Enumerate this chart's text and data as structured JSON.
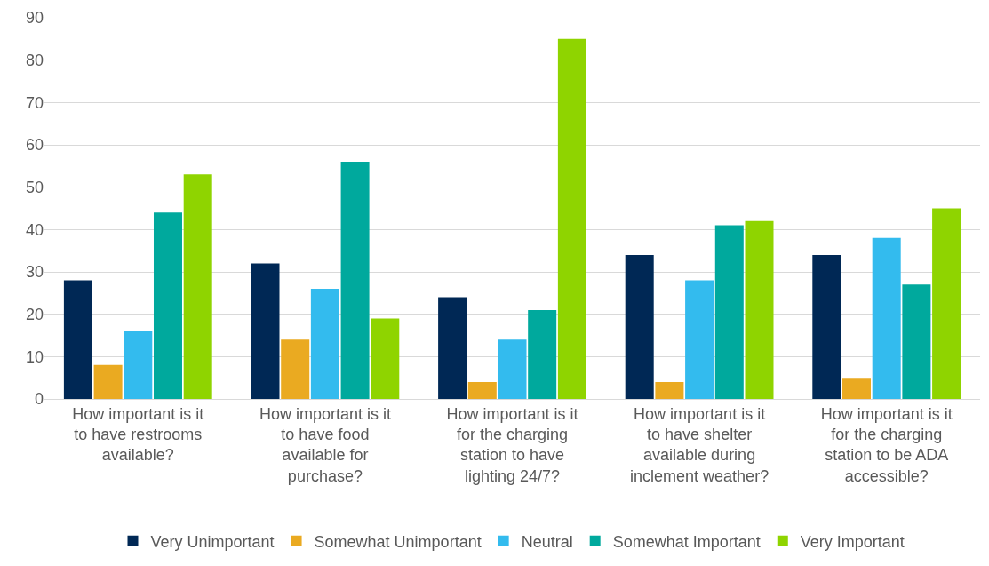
{
  "chart_data": {
    "type": "bar",
    "categories": [
      "How important is it to have restrooms available?",
      "How important is it to have food available for purchase?",
      "How important is it for the charging station to have lighting 24/7?",
      "How important is it to have shelter available during inclement weather?",
      "How important is it for the charging station to be ADA accessible?"
    ],
    "series": [
      {
        "name": "Very Unimportant",
        "color": "#002855",
        "values": [
          28,
          32,
          24,
          34,
          34
        ]
      },
      {
        "name": "Somewhat Unimportant",
        "color": "#eaaa21",
        "values": [
          8,
          14,
          4,
          4,
          5
        ]
      },
      {
        "name": "Neutral",
        "color": "#33bbee",
        "values": [
          16,
          26,
          14,
          28,
          38
        ]
      },
      {
        "name": "Somewhat Important",
        "color": "#00a99d",
        "values": [
          44,
          56,
          21,
          41,
          27
        ]
      },
      {
        "name": "Very Important",
        "color": "#8fd400",
        "values": [
          53,
          19,
          85,
          42,
          45
        ]
      }
    ],
    "ylim": [
      0,
      90
    ],
    "yticks": [
      0,
      10,
      20,
      30,
      40,
      50,
      60,
      70,
      80,
      90
    ],
    "grid": "y",
    "legend": "bottom"
  }
}
